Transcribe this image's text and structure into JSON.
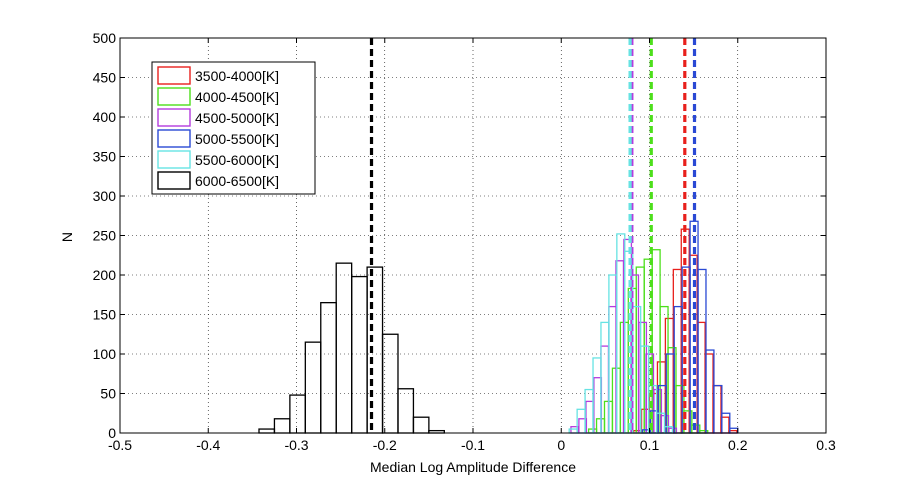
{
  "chart_data": {
    "type": "histogram",
    "title": "",
    "xlabel": "Median Log Amplitude Difference",
    "ylabel": "N",
    "xlim": [
      -0.5,
      0.3
    ],
    "ylim": [
      0,
      500
    ],
    "xticks": [
      "-0.5",
      "-0.4",
      "-0.3",
      "-0.2",
      "-0.1",
      "0",
      "0.1",
      "0.2",
      "0.3"
    ],
    "xtick_values": [
      -0.5,
      -0.4,
      -0.3,
      -0.2,
      -0.1,
      0,
      0.1,
      0.2,
      0.3
    ],
    "yticks": [
      "0",
      "50",
      "100",
      "150",
      "200",
      "250",
      "300",
      "350",
      "400",
      "450",
      "500"
    ],
    "ytick_values": [
      0,
      50,
      100,
      150,
      200,
      250,
      300,
      350,
      400,
      450,
      500
    ],
    "grid": true,
    "legend_position": "top-left",
    "series": [
      {
        "name": "3500-4000[K]",
        "color": "#e8201c",
        "bin_width": 0.009,
        "bins": [
          [
            0.082,
            3
          ],
          [
            0.091,
            30
          ],
          [
            0.1,
            50
          ],
          [
            0.109,
            90
          ],
          [
            0.118,
            145
          ],
          [
            0.127,
            207
          ],
          [
            0.136,
            258
          ],
          [
            0.145,
            225
          ],
          [
            0.154,
            140
          ],
          [
            0.163,
            100
          ],
          [
            0.172,
            60
          ],
          [
            0.181,
            20
          ],
          [
            0.19,
            3
          ]
        ],
        "median": 0.14
      },
      {
        "name": "4000-4500[K]",
        "color": "#4ddf1b",
        "bin_width": 0.009,
        "bins": [
          [
            0.031,
            5
          ],
          [
            0.04,
            18
          ],
          [
            0.049,
            40
          ],
          [
            0.058,
            82
          ],
          [
            0.067,
            140
          ],
          [
            0.076,
            183
          ],
          [
            0.085,
            210
          ],
          [
            0.094,
            220
          ],
          [
            0.103,
            232
          ],
          [
            0.112,
            160
          ],
          [
            0.121,
            108
          ],
          [
            0.13,
            60
          ],
          [
            0.139,
            28
          ],
          [
            0.148,
            10
          ],
          [
            0.157,
            3
          ]
        ],
        "median": 0.102
      },
      {
        "name": "4500-5000[K]",
        "color": "#b43cde",
        "bin_width": 0.0085,
        "bins": [
          [
            0.011,
            8
          ],
          [
            0.02,
            18
          ],
          [
            0.028,
            40
          ],
          [
            0.037,
            70
          ],
          [
            0.045,
            110
          ],
          [
            0.054,
            160
          ],
          [
            0.062,
            218
          ],
          [
            0.071,
            245
          ],
          [
            0.079,
            200
          ],
          [
            0.088,
            140
          ],
          [
            0.096,
            100
          ],
          [
            0.105,
            55
          ],
          [
            0.113,
            22
          ],
          [
            0.122,
            6
          ]
        ],
        "median": 0.08
      },
      {
        "name": "5000-5500[K]",
        "color": "#2a49d4",
        "bin_width": 0.009,
        "bins": [
          [
            0.092,
            4
          ],
          [
            0.101,
            28
          ],
          [
            0.11,
            60
          ],
          [
            0.119,
            100
          ],
          [
            0.128,
            160
          ],
          [
            0.137,
            210
          ],
          [
            0.146,
            268
          ],
          [
            0.155,
            207
          ],
          [
            0.164,
            105
          ],
          [
            0.173,
            60
          ],
          [
            0.182,
            25
          ],
          [
            0.191,
            6
          ]
        ],
        "median": 0.151
      },
      {
        "name": "5500-6000[K]",
        "color": "#66e3e3",
        "bin_width": 0.009,
        "bins": [
          [
            0.009,
            5
          ],
          [
            0.018,
            30
          ],
          [
            0.027,
            55
          ],
          [
            0.036,
            95
          ],
          [
            0.045,
            140
          ],
          [
            0.054,
            200
          ],
          [
            0.063,
            252
          ],
          [
            0.072,
            230
          ],
          [
            0.081,
            160
          ],
          [
            0.09,
            110
          ],
          [
            0.099,
            60
          ],
          [
            0.108,
            25
          ],
          [
            0.117,
            8
          ]
        ],
        "median": 0.078
      },
      {
        "name": "6000-6500[K]",
        "color": "#000000",
        "bin_width": 0.0175,
        "bins": [
          [
            -0.3425,
            5
          ],
          [
            -0.325,
            18
          ],
          [
            -0.3075,
            48
          ],
          [
            -0.29,
            115
          ],
          [
            -0.2725,
            165
          ],
          [
            -0.255,
            215
          ],
          [
            -0.2375,
            198
          ],
          [
            -0.22,
            210
          ],
          [
            -0.2025,
            125
          ],
          [
            -0.185,
            56
          ],
          [
            -0.1675,
            20
          ],
          [
            -0.15,
            3
          ]
        ],
        "median": -0.215
      }
    ]
  }
}
